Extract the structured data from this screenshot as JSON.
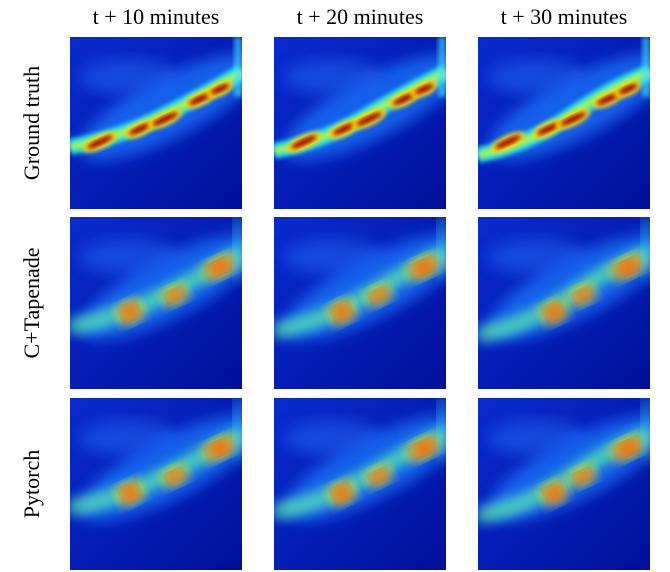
{
  "columns": [
    "t + 10 minutes",
    "t + 20 minutes",
    "t + 30 minutes"
  ],
  "rows": [
    "Ground truth",
    "C+Tapenade",
    "Pytorch"
  ]
}
